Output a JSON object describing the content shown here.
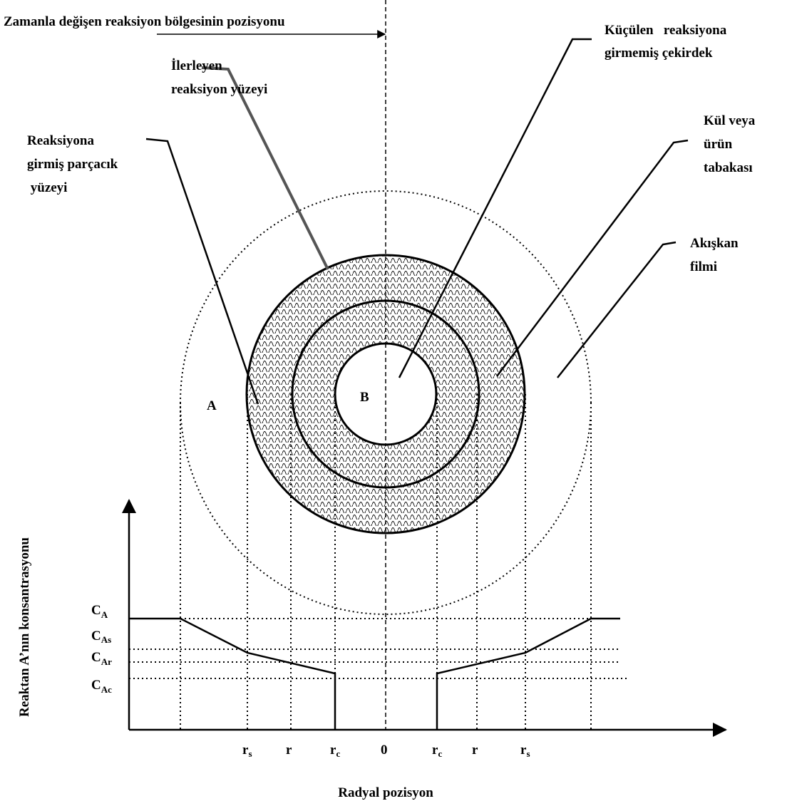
{
  "title": "Zamanla değişen reaksiyon bölgesinin pozisyonu",
  "labels": {
    "advancing_surface": [
      "İlerleyen",
      "reaksiyon yüzeyi"
    ],
    "particle_surface": [
      "Reaksiyona",
      "girmiş parçacık",
      " yüzeyi"
    ],
    "shrinking_core": [
      "Küçülen   reaksiyona",
      "girmemiş çekirdek"
    ],
    "ash_layer": [
      "Kül veya",
      "ürün",
      "tabakası"
    ],
    "fluid_film": [
      "Akışkan",
      "filmi"
    ],
    "region_a": "A",
    "region_b": "B"
  },
  "y_axis_label": "Reaktan A’nın konsantrasyonu",
  "x_axis_label": "Radyal pozisyon",
  "concentration_levels": [
    {
      "main": "C",
      "sub": "A"
    },
    {
      "main": "C",
      "sub": "As"
    },
    {
      "main": "C",
      "sub": "Ar"
    },
    {
      "main": "C",
      "sub": "Ac"
    }
  ],
  "radial_positions": [
    {
      "main": "r",
      "sub": "s"
    },
    {
      "main": "r",
      "sub": ""
    },
    {
      "main": "r",
      "sub": "c"
    },
    {
      "main": "0",
      "sub": ""
    },
    {
      "main": "r",
      "sub": "c"
    },
    {
      "main": "r",
      "sub": ""
    },
    {
      "main": "r",
      "sub": "s"
    }
  ]
}
